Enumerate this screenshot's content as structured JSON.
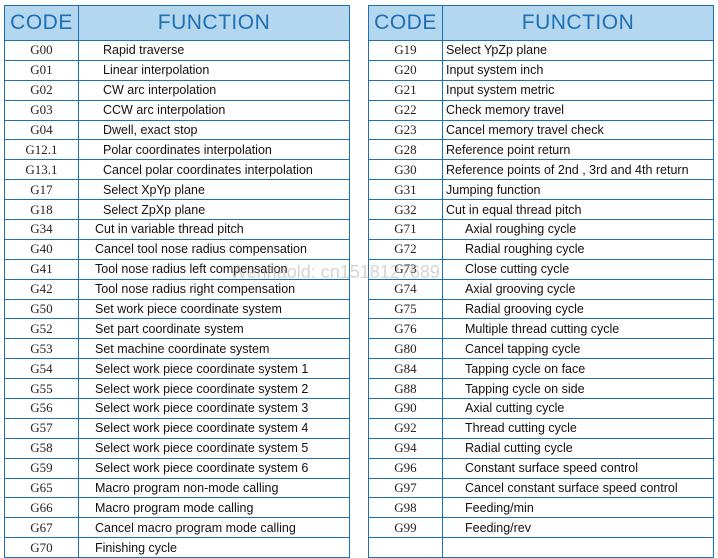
{
  "headers": {
    "code": "CODE",
    "function": "FUNCTION"
  },
  "left": [
    {
      "code": "G00",
      "fn": "Rapid traverse",
      "ind": true
    },
    {
      "code": "G01",
      "fn": "Linear interpolation",
      "ind": true
    },
    {
      "code": "G02",
      "fn": "CW arc interpolation",
      "ind": true
    },
    {
      "code": "G03",
      "fn": "CCW arc interpolation",
      "ind": true
    },
    {
      "code": "G04",
      "fn": "Dwell, exact stop",
      "ind": true
    },
    {
      "code": "G12.1",
      "fn": "Polar coordinates interpolation",
      "ind": true
    },
    {
      "code": "G13.1",
      "fn": "Cancel polar coordinates interpolation",
      "ind": true
    },
    {
      "code": "G17",
      "fn": "Select XpYp plane",
      "ind": true
    },
    {
      "code": "G18",
      "fn": "Select ZpXp plane",
      "ind": true
    },
    {
      "code": "G34",
      "fn": "Cut in variable thread pitch",
      "ind": false
    },
    {
      "code": "G40",
      "fn": "Cancel tool nose radius compensation",
      "ind": false
    },
    {
      "code": "G41",
      "fn": "Tool nose radius left compensation",
      "ind": false
    },
    {
      "code": "G42",
      "fn": "Tool nose radius right compensation",
      "ind": false
    },
    {
      "code": "G50",
      "fn": "Set work piece coordinate system",
      "ind": false
    },
    {
      "code": "G52",
      "fn": "Set part coordinate system",
      "ind": false
    },
    {
      "code": "G53",
      "fn": "Set machine coordinate system",
      "ind": false
    },
    {
      "code": "G54",
      "fn": "Select work piece coordinate system    1",
      "ind": false
    },
    {
      "code": "G55",
      "fn": "Select work piece coordinate system 2",
      "ind": false
    },
    {
      "code": "G56",
      "fn": "Select work piece coordinate system 3",
      "ind": false
    },
    {
      "code": "G57",
      "fn": "Select work piece coordinate system 4",
      "ind": false
    },
    {
      "code": "G58",
      "fn": "Select work piece coordinate system 5",
      "ind": false
    },
    {
      "code": "G59",
      "fn": "Select work piece coordinate system 6",
      "ind": false
    },
    {
      "code": "G65",
      "fn": "Macro program non-mode calling",
      "ind": false
    },
    {
      "code": "G66",
      "fn": "Macro program mode calling",
      "ind": false
    },
    {
      "code": "G67",
      "fn": "Cancel macro program  mode calling",
      "ind": false
    },
    {
      "code": "G70",
      "fn": "Finishing cycle",
      "ind": false
    }
  ],
  "right": [
    {
      "code": "G19",
      "fn": "Select YpZp plane",
      "ind": false
    },
    {
      "code": "G20",
      "fn": "Input system inch",
      "ind": false
    },
    {
      "code": "G21",
      "fn": "Input system metric",
      "ind": false
    },
    {
      "code": "G22",
      "fn": "Check memory travel",
      "ind": false
    },
    {
      "code": "G23",
      "fn": "Cancel memory travel check",
      "ind": false
    },
    {
      "code": "G28",
      "fn": "Reference point return",
      "ind": false
    },
    {
      "code": "G30",
      "fn": "Reference points of 2nd , 3rd  and 4th  return",
      "ind": false
    },
    {
      "code": "G31",
      "fn": "Jumping function",
      "ind": false
    },
    {
      "code": "G32",
      "fn": "Cut in equal thread pitch",
      "ind": false
    },
    {
      "code": "G71",
      "fn": "Axial roughing cycle",
      "ind": true
    },
    {
      "code": "G72",
      "fn": "Radial roughing cycle",
      "ind": true
    },
    {
      "code": "G73",
      "fn": "Close cutting cycle",
      "ind": true
    },
    {
      "code": "G74",
      "fn": "Axial grooving cycle",
      "ind": true
    },
    {
      "code": "G75",
      "fn": "Radial grooving cycle",
      "ind": true
    },
    {
      "code": "G76",
      "fn": "Multiple thread cutting cycle",
      "ind": true
    },
    {
      "code": "G80",
      "fn": "Cancel tapping cycle",
      "ind": true
    },
    {
      "code": "G84",
      "fn": "Tapping cycle on face",
      "ind": true
    },
    {
      "code": "G88",
      "fn": "Tapping cycle on side",
      "ind": true
    },
    {
      "code": "G90",
      "fn": "Axial cutting cycle",
      "ind": true
    },
    {
      "code": "G92",
      "fn": "Thread cutting cycle",
      "ind": true
    },
    {
      "code": "G94",
      "fn": "Radial  cutting cycle",
      "ind": true
    },
    {
      "code": "G96",
      "fn": "Constant surface speed control",
      "ind": true
    },
    {
      "code": "G97",
      "fn": "Cancel constant surface speed control",
      "ind": true
    },
    {
      "code": "G98",
      "fn": "Feeding/min",
      "ind": true
    },
    {
      "code": "G99",
      "fn": "Feeding/rev",
      "ind": true
    },
    {
      "code": "",
      "fn": "",
      "ind": false
    }
  ],
  "watermark": "Wenhaold: cn1518127689"
}
